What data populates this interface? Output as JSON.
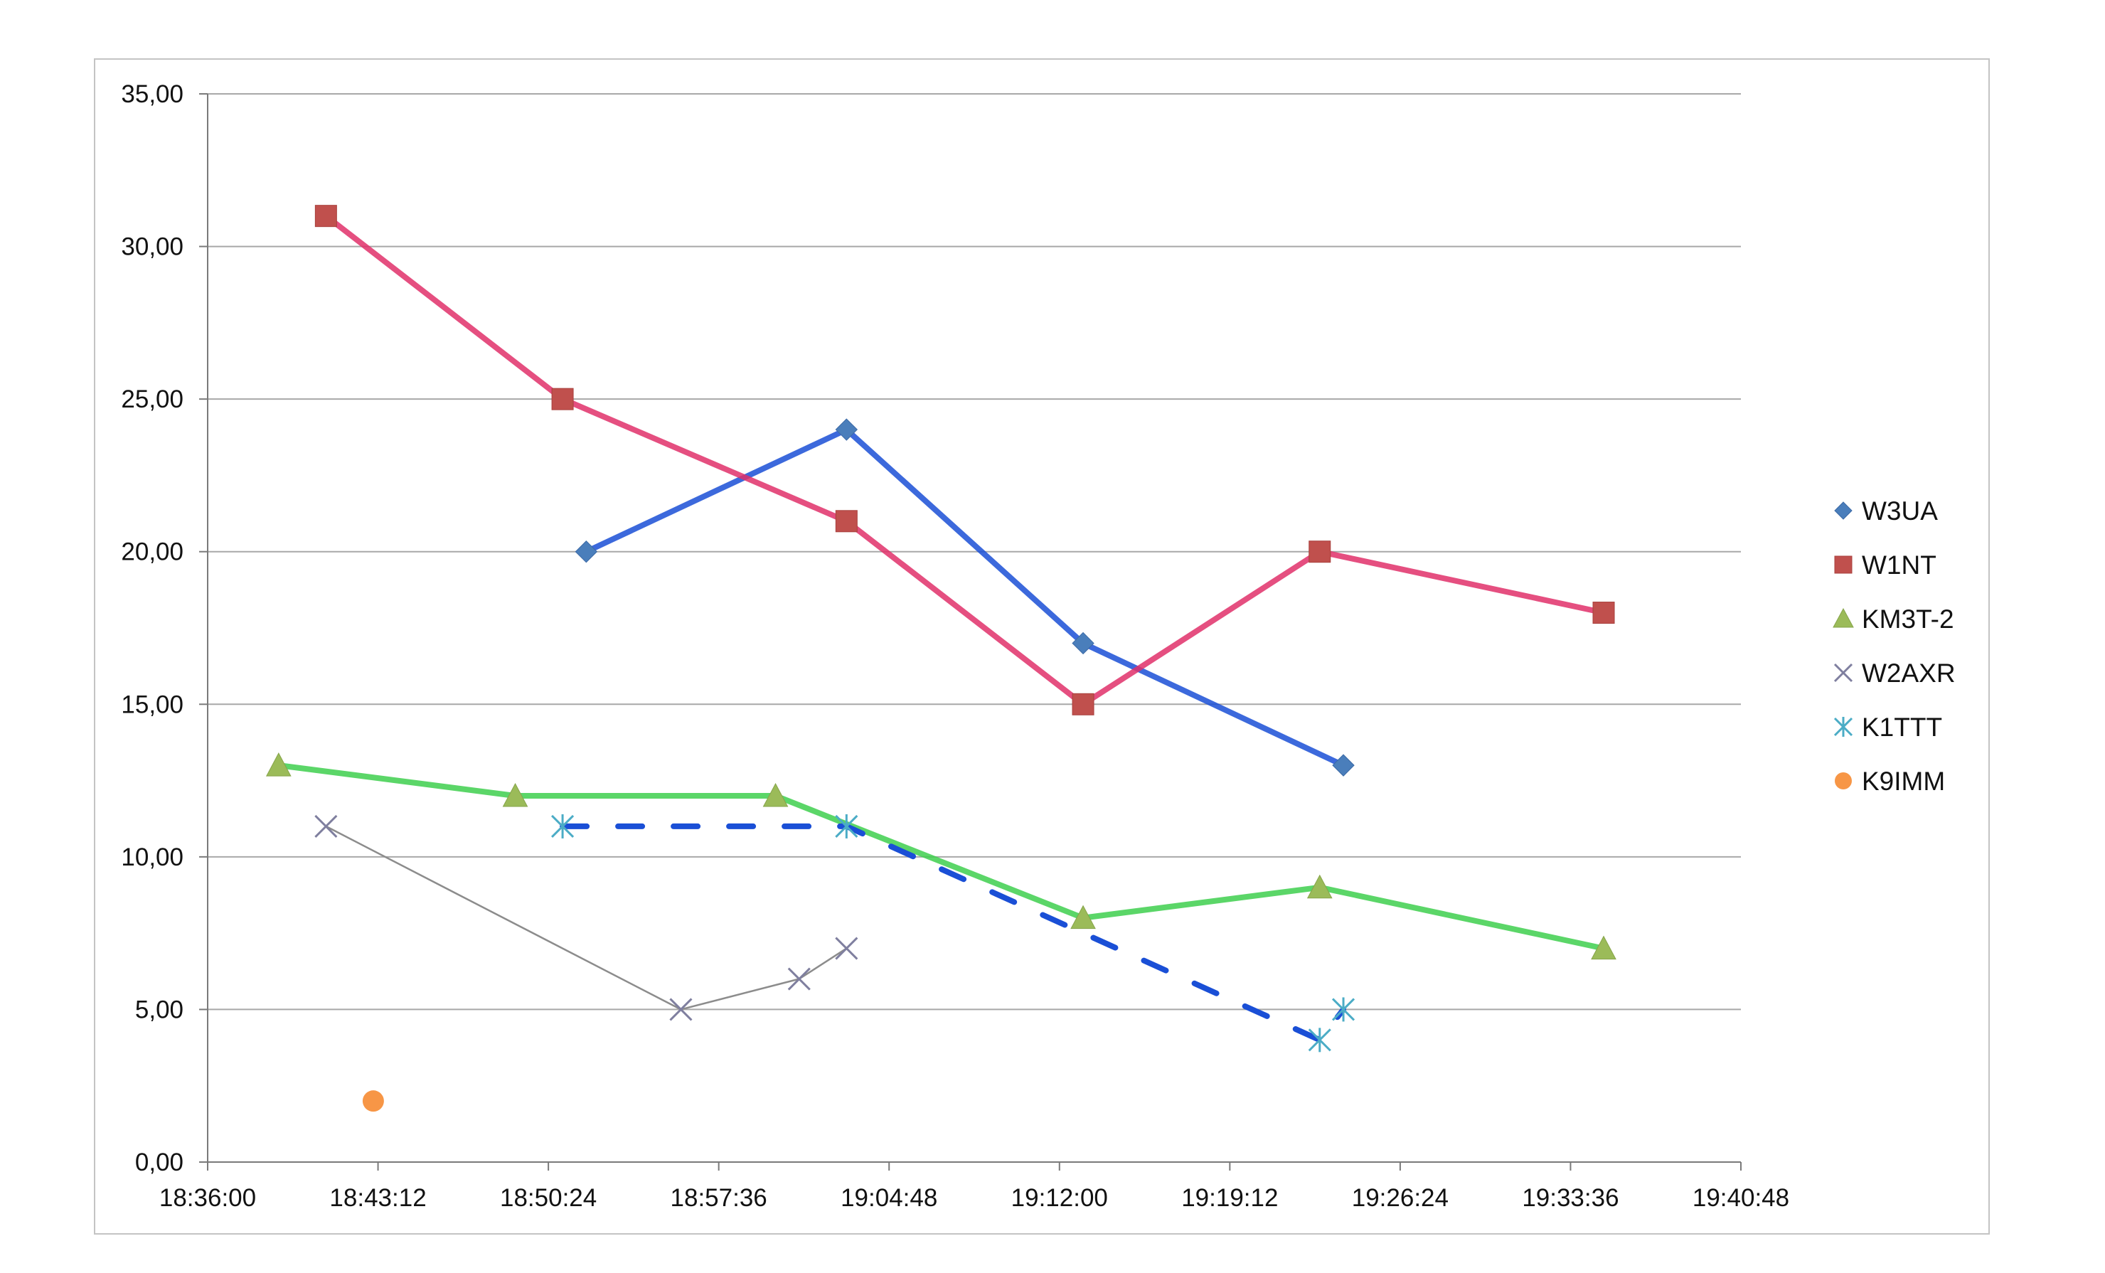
{
  "chart_data": {
    "type": "scatter",
    "title": "",
    "xlabel": "",
    "ylabel": "",
    "x_format": "time",
    "xlim": [
      "18:36:00",
      "19:40:48"
    ],
    "ylim": [
      0,
      35
    ],
    "x_ticks": [
      "18:36:00",
      "18:43:12",
      "18:50:24",
      "18:57:36",
      "19:04:48",
      "19:12:00",
      "19:19:12",
      "19:26:24",
      "19:33:36",
      "19:40:48"
    ],
    "y_ticks": [
      "0,00",
      "5,00",
      "10,00",
      "15,00",
      "20,00",
      "25,00",
      "30,00",
      "35,00"
    ],
    "y_tick_values": [
      0,
      5,
      10,
      15,
      20,
      25,
      30,
      35
    ],
    "grid": "horizontal",
    "legend_position": "right",
    "series": [
      {
        "name": "W3UA",
        "marker": "diamond",
        "color": "#4a7ebb",
        "line_color": "#1a4fd6",
        "line_style": "solid",
        "points": [
          [
            "18:52:00",
            20
          ],
          [
            "19:03:00",
            24
          ],
          [
            "19:13:00",
            17
          ],
          [
            "19:24:00",
            13
          ]
        ]
      },
      {
        "name": "W1NT",
        "marker": "square",
        "color": "#c0504d",
        "line_color": "#e0306a",
        "line_style": "solid",
        "points": [
          [
            "18:41:00",
            31
          ],
          [
            "18:51:00",
            25
          ],
          [
            "19:03:00",
            21
          ],
          [
            "19:13:00",
            15
          ],
          [
            "19:23:00",
            20
          ],
          [
            "19:35:00",
            18
          ]
        ]
      },
      {
        "name": "KM3T-2",
        "marker": "triangle",
        "color": "#9bbb59",
        "line_color": "#3ecf4e",
        "line_style": "solid",
        "points": [
          [
            "18:39:00",
            13
          ],
          [
            "18:49:00",
            12
          ],
          [
            "19:00:00",
            12
          ],
          [
            "19:13:00",
            8
          ],
          [
            "19:23:00",
            9
          ],
          [
            "19:35:00",
            7
          ]
        ]
      },
      {
        "name": "W2AXR",
        "marker": "x",
        "color": "#7f7f9f",
        "line_color": "#8c8c8c",
        "line_style": "thin",
        "points": [
          [
            "18:41:00",
            11
          ],
          [
            "18:56:00",
            5
          ],
          [
            "19:01:00",
            6
          ],
          [
            "19:03:00",
            7
          ]
        ]
      },
      {
        "name": "K1TTT",
        "marker": "asterisk",
        "color": "#4bacc6",
        "line_color": "#1a4fd6",
        "line_style": "dashed",
        "points": [
          [
            "18:51:00",
            11
          ],
          [
            "19:03:00",
            11
          ],
          [
            "19:23:00",
            4
          ],
          [
            "19:24:00",
            5
          ]
        ]
      },
      {
        "name": "K9IMM",
        "marker": "circle",
        "color": "#f79646",
        "line_color": "#f79646",
        "line_style": "none",
        "points": [
          [
            "18:43:00",
            2
          ]
        ]
      }
    ]
  }
}
